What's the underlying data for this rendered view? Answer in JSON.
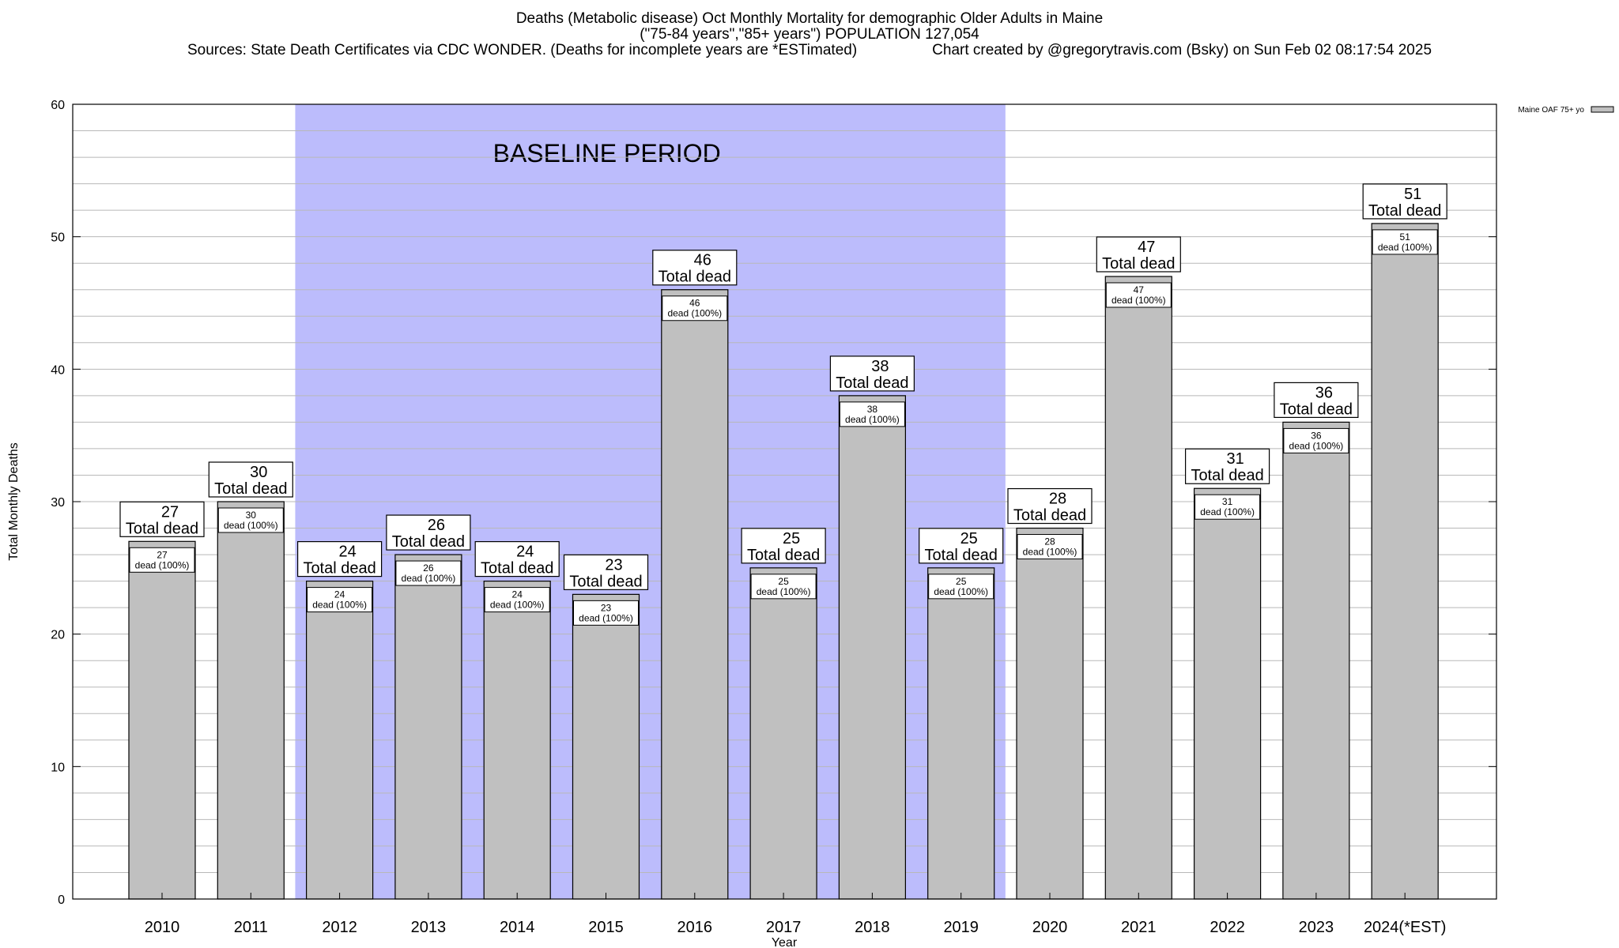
{
  "header": {
    "title": "Deaths (Metabolic disease) Oct Monthly Mortality for demographic Older Adults in Maine",
    "subtitle": "(\"75-84 years\",\"85+ years\") POPULATION 127,054",
    "sources": "Sources: State Death Certificates via CDC WONDER. (Deaths for incomplete years are *ESTimated)",
    "credit": "Chart created by @gregorytravis.com (Bsky) on Sun Feb 02 08:17:54 2025"
  },
  "colors": {
    "bar_fill": "#c0c0c0",
    "baseline_fill": "#bcbcfc",
    "grid": "#b8b8b8",
    "text": "#000000"
  },
  "chart_data": {
    "type": "bar",
    "xlabel": "Year",
    "ylabel": "Total Monthly Deaths",
    "ylim": [
      0,
      60
    ],
    "yticks": [
      0,
      10,
      20,
      30,
      40,
      50,
      60
    ],
    "grid": true,
    "minor_step": 2,
    "legend": {
      "entries": [
        "Maine OAF 75+ yo"
      ],
      "placement": "top-right outside"
    },
    "categories": [
      "2010",
      "2011",
      "2012",
      "2013",
      "2014",
      "2015",
      "2016",
      "2017",
      "2018",
      "2019",
      "2020",
      "2021",
      "2022",
      "2023",
      "2024(*EST)"
    ],
    "series": [
      {
        "name": "Maine OAF 75+ yo",
        "values": [
          27,
          30,
          24,
          26,
          24,
          23,
          46,
          25,
          38,
          25,
          28,
          47,
          31,
          36,
          51
        ]
      }
    ],
    "top_label_suffix": "Total dead",
    "inner_label_suffix": "dead (100%)",
    "baseline": {
      "label": "BASELINE PERIOD",
      "start": "2012",
      "end": "2019"
    }
  }
}
